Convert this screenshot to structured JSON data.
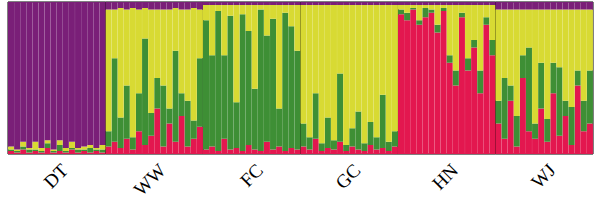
{
  "chart_data": {
    "type": "bar",
    "stacked": true,
    "tick_labels": "x",
    "ylim": [
      0,
      1
    ],
    "categories": [
      null,
      null,
      null,
      null,
      null,
      null,
      null,
      null,
      "DT",
      null,
      null,
      null,
      null,
      null,
      null,
      null,
      null,
      null,
      null,
      null,
      null,
      null,
      null,
      null,
      "WW",
      null,
      null,
      null,
      null,
      null,
      null,
      null,
      null,
      null,
      null,
      null,
      null,
      null,
      null,
      null,
      "FC",
      null,
      null,
      null,
      null,
      null,
      null,
      null,
      null,
      null,
      null,
      null,
      null,
      null,
      null,
      null,
      "GC",
      null,
      null,
      null,
      null,
      null,
      null,
      null,
      null,
      null,
      null,
      null,
      null,
      null,
      null,
      null,
      "HN",
      null,
      null,
      null,
      null,
      null,
      null,
      null,
      null,
      null,
      null,
      null,
      null,
      null,
      null,
      null,
      "WJ",
      null,
      null,
      null,
      null,
      null,
      null,
      null
    ],
    "series": [
      {
        "color": "#e3174f",
        "values": [
          0.02,
          0.01,
          0.03,
          0.01,
          0.02,
          0.01,
          0.04,
          0.01,
          0.02,
          0.01,
          0.03,
          0.01,
          0.02,
          0.01,
          0.02,
          0.01,
          0.05,
          0.08,
          0.04,
          0.1,
          0.03,
          0.15,
          0.06,
          0.12,
          0.3,
          0.05,
          0.2,
          0.08,
          0.25,
          0.05,
          0.1,
          0.18,
          0.03,
          0.05,
          0.02,
          0.1,
          0.03,
          0.04,
          0.02,
          0.06,
          0.03,
          0.02,
          0.08,
          0.03,
          0.05,
          0.02,
          0.04,
          0.03,
          0.05,
          0.03,
          0.1,
          0.02,
          0.04,
          0.03,
          0.08,
          0.02,
          0.05,
          0.03,
          0.02,
          0.06,
          0.03,
          0.04,
          0.02,
          0.05,
          0.92,
          0.88,
          0.95,
          0.85,
          0.9,
          0.93,
          0.8,
          0.94,
          0.6,
          0.45,
          0.9,
          0.55,
          0.7,
          0.4,
          0.85,
          0.65,
          0.2,
          0.1,
          0.35,
          0.05,
          0.5,
          0.15,
          0.1,
          0.3,
          0.08,
          0.4,
          0.12,
          0.25,
          0.06,
          0.45,
          0.15,
          0.2
        ]
      },
      {
        "color": "#3e8f35",
        "values": [
          0.01,
          0.01,
          0.02,
          0.02,
          0.01,
          0.01,
          0.03,
          0.01,
          0.04,
          0.01,
          0.01,
          0.02,
          0.01,
          0.03,
          0.01,
          0.02,
          0.1,
          0.55,
          0.2,
          0.35,
          0.08,
          0.25,
          0.7,
          0.15,
          0.2,
          0.4,
          0.1,
          0.6,
          0.15,
          0.3,
          0.12,
          0.45,
          0.85,
          0.6,
          0.92,
          0.55,
          0.88,
          0.3,
          0.9,
          0.75,
          0.4,
          0.93,
          0.7,
          0.86,
          0.25,
          0.91,
          0.8,
          0.65,
          0.15,
          0.08,
          0.3,
          0.05,
          0.2,
          0.06,
          0.45,
          0.04,
          0.12,
          0.25,
          0.05,
          0.15,
          0.08,
          0.35,
          0.06,
          0.1,
          0.03,
          0.05,
          0.01,
          0.03,
          0.06,
          0.02,
          0.05,
          0.02,
          0.05,
          0.1,
          0.03,
          0.08,
          0.05,
          0.15,
          0.05,
          0.1,
          0.15,
          0.4,
          0.1,
          0.2,
          0.15,
          0.55,
          0.1,
          0.3,
          0.15,
          0.2,
          0.45,
          0.1,
          0.25,
          0.1,
          0.2,
          0.35
        ]
      },
      {
        "color": "#d8da33",
        "values": [
          0.02,
          0.01,
          0.03,
          0.01,
          0.05,
          0.02,
          0.02,
          0.01,
          0.03,
          0.02,
          0.04,
          0.01,
          0.02,
          0.02,
          0.01,
          0.03,
          0.8,
          0.32,
          0.72,
          0.5,
          0.85,
          0.55,
          0.2,
          0.68,
          0.45,
          0.5,
          0.65,
          0.28,
          0.55,
          0.6,
          0.74,
          0.32,
          0.1,
          0.33,
          0.04,
          0.33,
          0.07,
          0.64,
          0.06,
          0.17,
          0.55,
          0.03,
          0.2,
          0.09,
          0.68,
          0.05,
          0.14,
          0.3,
          0.78,
          0.87,
          0.58,
          0.91,
          0.74,
          0.89,
          0.45,
          0.92,
          0.81,
          0.7,
          0.91,
          0.77,
          0.87,
          0.59,
          0.9,
          0.83,
          0.03,
          0.05,
          0.02,
          0.1,
          0.02,
          0.03,
          0.13,
          0.02,
          0.33,
          0.43,
          0.05,
          0.35,
          0.23,
          0.43,
          0.08,
          0.23,
          0.6,
          0.45,
          0.5,
          0.7,
          0.3,
          0.25,
          0.75,
          0.35,
          0.72,
          0.35,
          0.38,
          0.6,
          0.64,
          0.4,
          0.6,
          0.4
        ]
      },
      {
        "color": "#7a1f78",
        "values": [
          0.95,
          0.97,
          0.92,
          0.96,
          0.92,
          0.96,
          0.91,
          0.97,
          0.91,
          0.96,
          0.92,
          0.96,
          0.95,
          0.94,
          0.96,
          0.94,
          0.05,
          0.05,
          0.04,
          0.05,
          0.04,
          0.05,
          0.04,
          0.05,
          0.05,
          0.05,
          0.05,
          0.04,
          0.05,
          0.05,
          0.04,
          0.05,
          0.02,
          0.02,
          0.02,
          0.02,
          0.02,
          0.02,
          0.02,
          0.02,
          0.02,
          0.02,
          0.02,
          0.02,
          0.02,
          0.02,
          0.02,
          0.02,
          0.02,
          0.02,
          0.02,
          0.02,
          0.02,
          0.02,
          0.02,
          0.02,
          0.02,
          0.02,
          0.02,
          0.02,
          0.02,
          0.02,
          0.02,
          0.02,
          0.02,
          0.02,
          0.02,
          0.02,
          0.02,
          0.02,
          0.02,
          0.02,
          0.02,
          0.02,
          0.02,
          0.02,
          0.02,
          0.02,
          0.02,
          0.02,
          0.05,
          0.05,
          0.05,
          0.05,
          0.05,
          0.05,
          0.05,
          0.05,
          0.05,
          0.05,
          0.05,
          0.05,
          0.05,
          0.05,
          0.05,
          0.05
        ]
      }
    ]
  }
}
